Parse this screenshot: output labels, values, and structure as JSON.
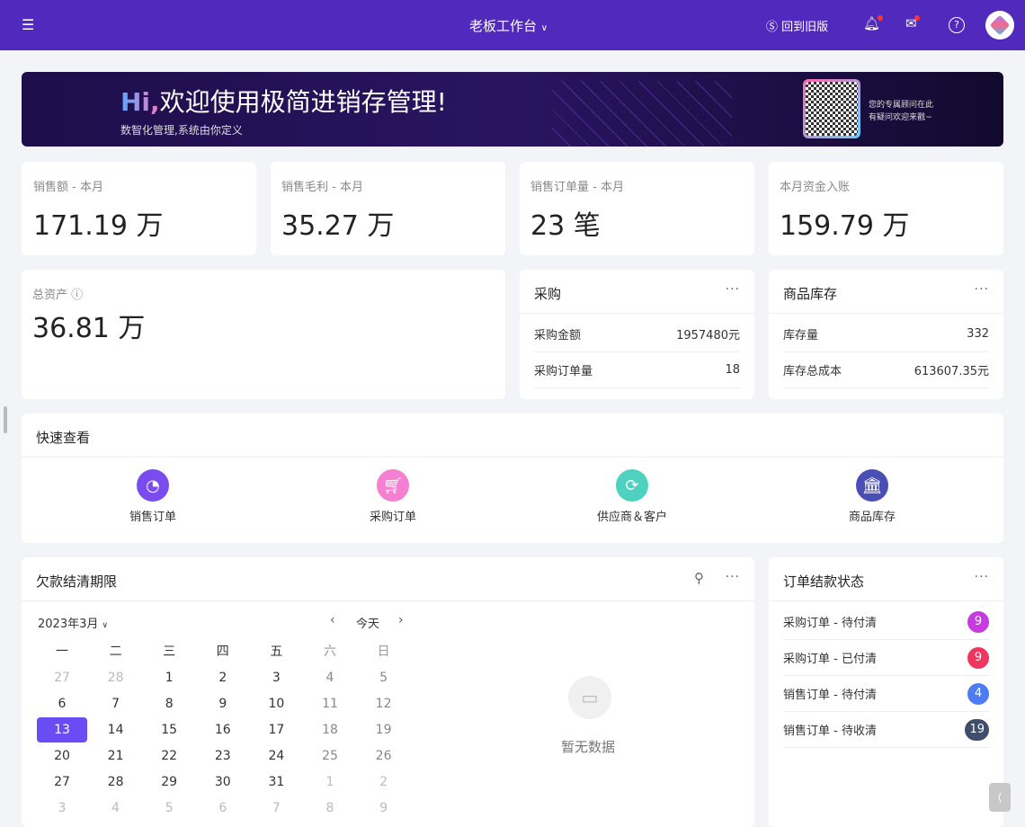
{
  "header": {
    "title": "老板工作台",
    "old_version": "回到旧版",
    "brand": "#5229bd"
  },
  "banner": {
    "hi": "Hi,",
    "title": "欢迎使用极简进销存管理!",
    "subtitle": "数智化管理,系统由你定义",
    "advisor_line1": "您的专属顾问在此",
    "advisor_line2": "有疑问欢迎来戳~"
  },
  "stats": [
    {
      "label": "销售额 - 本月",
      "value": "171.19 万"
    },
    {
      "label": "销售毛利 - 本月",
      "value": "35.27 万"
    },
    {
      "label": "销售订单量 - 本月",
      "value": "23 笔"
    },
    {
      "label": "本月资金入账",
      "value": "159.79 万"
    }
  ],
  "assets": {
    "label": "总资产",
    "value": "36.81 万"
  },
  "purchase": {
    "title": "采购",
    "rows": [
      {
        "k": "采购金额",
        "v": "1957480元"
      },
      {
        "k": "采购订单量",
        "v": "18"
      }
    ]
  },
  "stock": {
    "title": "商品库存",
    "rows": [
      {
        "k": "库存量",
        "v": "332"
      },
      {
        "k": "库存总成本",
        "v": "613607.35元"
      }
    ]
  },
  "quick": {
    "title": "快速查看",
    "items": [
      {
        "label": "销售订单",
        "icon": "pie-chart-icon",
        "color": "#7a4cf0"
      },
      {
        "label": "采购订单",
        "icon": "cart-icon",
        "color": "#f57fd0"
      },
      {
        "label": "供应商＆客户",
        "icon": "refresh-icon",
        "color": "#4fd1c0"
      },
      {
        "label": "商品库存",
        "icon": "bank-icon",
        "color": "#4a4fb5"
      }
    ]
  },
  "calendar": {
    "title": "欠款结清期限",
    "month": "2023年3月",
    "today": "今天",
    "empty": "暂无数据",
    "weekdays": [
      "一",
      "二",
      "三",
      "四",
      "五",
      "六",
      "日"
    ],
    "weeks": [
      [
        "27",
        "28",
        "1",
        "2",
        "3",
        "4",
        "5"
      ],
      [
        "6",
        "7",
        "8",
        "9",
        "10",
        "11",
        "12"
      ],
      [
        "13",
        "14",
        "15",
        "16",
        "17",
        "18",
        "19"
      ],
      [
        "20",
        "21",
        "22",
        "23",
        "24",
        "25",
        "26"
      ],
      [
        "27",
        "28",
        "29",
        "30",
        "31",
        "1",
        "2"
      ],
      [
        "3",
        "4",
        "5",
        "6",
        "7",
        "8",
        "9"
      ]
    ],
    "selected": "13"
  },
  "orders": {
    "title": "订单结款状态",
    "rows": [
      {
        "label": "采购订单 - 待付清",
        "count": "9",
        "color": "#c63be0"
      },
      {
        "label": "采购订单 - 已付清",
        "count": "9",
        "color": "#f0365f"
      },
      {
        "label": "销售订单 - 待付清",
        "count": "4",
        "color": "#4d7cf2"
      },
      {
        "label": "销售订单 - 待收清",
        "count": "19",
        "color": "#3e4e6b"
      }
    ]
  }
}
